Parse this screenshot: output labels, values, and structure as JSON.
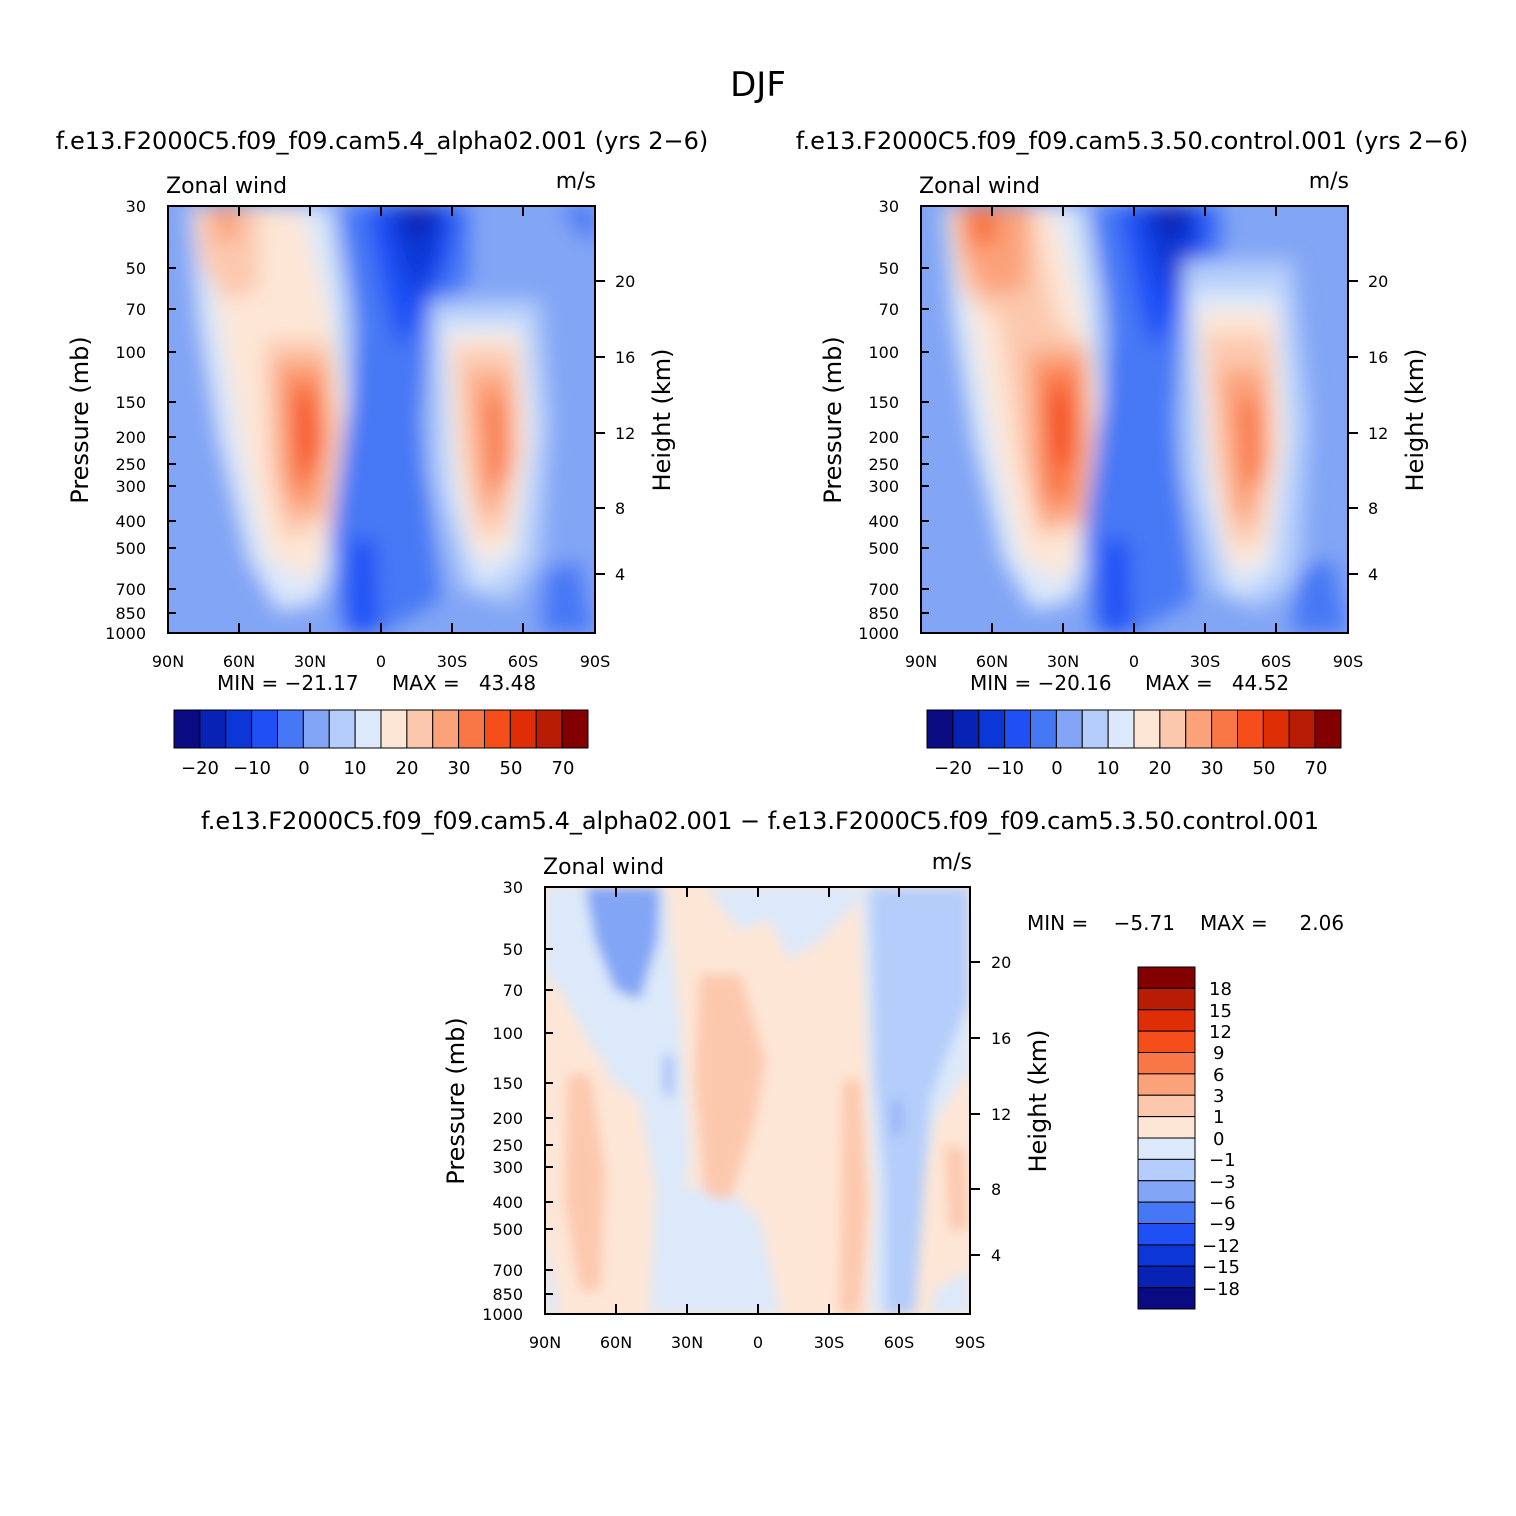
{
  "figure_title": "DJF",
  "chart_data": [
    {
      "type": "heatmap",
      "title": "f.e13.F2000C5.f09_f09.cam5.4_alpha02.001 (yrs 2−6)",
      "variable": "Zonal wind",
      "units": "m/s",
      "xlabel": "",
      "ylabel": "Pressure (mb)",
      "ylabel_right": "Height (km)",
      "x_ticks": [
        "90N",
        "60N",
        "30N",
        "0",
        "30S",
        "60S",
        "90S"
      ],
      "y_ticks": [
        "30",
        "50",
        "70",
        "100",
        "150",
        "200",
        "250",
        "300",
        "400",
        "500",
        "700",
        "850",
        "1000"
      ],
      "y_ticks_right": [
        "20",
        "16",
        "12",
        "8",
        "4"
      ],
      "min_label": "MIN = −21.17",
      "max_label": "MAX =   43.48",
      "min": -21.17,
      "max": 43.48,
      "colorbar_labels": [
        "−20",
        "−10",
        "0",
        "10",
        "20",
        "30",
        "50",
        "70"
      ]
    },
    {
      "type": "heatmap",
      "title": "f.e13.F2000C5.f09_f09.cam5.3.50.control.001 (yrs 2−6)",
      "variable": "Zonal wind",
      "units": "m/s",
      "xlabel": "",
      "ylabel": "Pressure (mb)",
      "ylabel_right": "Height (km)",
      "x_ticks": [
        "90N",
        "60N",
        "30N",
        "0",
        "30S",
        "60S",
        "90S"
      ],
      "y_ticks": [
        "30",
        "50",
        "70",
        "100",
        "150",
        "200",
        "250",
        "300",
        "400",
        "500",
        "700",
        "850",
        "1000"
      ],
      "y_ticks_right": [
        "20",
        "16",
        "12",
        "8",
        "4"
      ],
      "min_label": "MIN = −20.16",
      "max_label": "MAX =   44.52",
      "min": -20.16,
      "max": 44.52,
      "colorbar_labels": [
        "−20",
        "−10",
        "0",
        "10",
        "20",
        "30",
        "50",
        "70"
      ]
    },
    {
      "type": "heatmap",
      "title": "f.e13.F2000C5.f09_f09.cam5.4_alpha02.001 − f.e13.F2000C5.f09_f09.cam5.3.50.control.001",
      "variable": "Zonal wind",
      "units": "m/s",
      "xlabel": "",
      "ylabel": "Pressure (mb)",
      "ylabel_right": "Height (km)",
      "x_ticks": [
        "90N",
        "60N",
        "30N",
        "0",
        "30S",
        "60S",
        "90S"
      ],
      "y_ticks": [
        "30",
        "50",
        "70",
        "100",
        "150",
        "200",
        "250",
        "300",
        "400",
        "500",
        "700",
        "850",
        "1000"
      ],
      "y_ticks_right": [
        "20",
        "16",
        "12",
        "8",
        "4"
      ],
      "min_label": "MIN =    −5.71",
      "max_label": "MAX =     2.06",
      "min": -5.71,
      "max": 2.06,
      "colorbar_labels": [
        "18",
        "15",
        "12",
        "9",
        "6",
        "3",
        "1",
        "0",
        "−1",
        "−3",
        "−6",
        "−9",
        "−12",
        "−15",
        "−18"
      ]
    }
  ],
  "colors": {
    "wind_palette": [
      "#0a0a82",
      "#0722b4",
      "#0b37d6",
      "#1e50f5",
      "#4678f5",
      "#82a5f5",
      "#b4cdfa",
      "#dce9fa",
      "#fde6d6",
      "#fcc8ad",
      "#fba27a",
      "#f97746",
      "#f54e1a",
      "#df2d05",
      "#b91c04",
      "#820000"
    ],
    "diff_palette": [
      "#820000",
      "#b91c04",
      "#df2d05",
      "#f54e1a",
      "#f97746",
      "#fba27a",
      "#fcc8ad",
      "#fde6d6",
      "#dce9fa",
      "#b4cdfa",
      "#82a5f5",
      "#4678f5",
      "#1e50f5",
      "#0b37d6",
      "#0722b4",
      "#0a0a82"
    ]
  }
}
